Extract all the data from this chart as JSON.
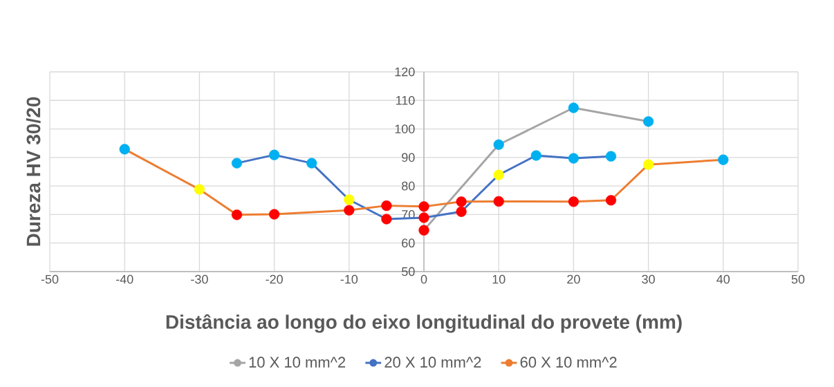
{
  "chart_data": {
    "type": "line",
    "xlabel": "Distância ao longo do eixo longitudinal do provete (mm)",
    "ylabel": "Dureza HV 30/20",
    "xlim": [
      -50,
      50
    ],
    "xticks": [
      -50,
      -40,
      -30,
      -20,
      -10,
      0,
      10,
      20,
      30,
      40,
      50
    ],
    "ylim": [
      50,
      120
    ],
    "yticks": [
      50,
      60,
      70,
      80,
      90,
      100,
      110,
      120
    ],
    "grid": true,
    "legend": "bottom",
    "marker": "circle",
    "line_style": "solid",
    "series": [
      {
        "name": "10 X 10 mm^2",
        "color": "#a5a5a5",
        "x": [
          0,
          5,
          10,
          20,
          30
        ],
        "values": [
          64.5,
          null,
          94.5,
          107.4,
          102.6
        ],
        "colors": [
          "#ff0000",
          "#ffff00",
          "#00b0f0",
          "#00b0f0",
          "#00b0f0"
        ]
      },
      {
        "name": "20 X 10 mm^2",
        "color": "#4472c4",
        "x": [
          -25,
          -20,
          -15,
          -10,
          -5,
          0,
          5,
          10,
          15,
          20,
          25
        ],
        "values": [
          88.0,
          90.9,
          88.0,
          75.2,
          68.4,
          68.9,
          71.0,
          83.9,
          90.7,
          89.7,
          90.4
        ],
        "colors": [
          "#00b0f0",
          "#00b0f0",
          "#00b0f0",
          "#ffff00",
          "#ff0000",
          "#ff0000",
          "#ff0000",
          "#ffff00",
          "#00b0f0",
          "#00b0f0",
          "#00b0f0"
        ]
      },
      {
        "name": "60 X 10 mm^2",
        "color": "#ed7d31",
        "x": [
          -40,
          -30,
          -25,
          -20,
          -10,
          -5,
          0,
          5,
          10,
          20,
          25,
          30,
          40
        ],
        "values": [
          92.9,
          78.8,
          69.9,
          70.1,
          71.5,
          73.1,
          72.8,
          74.5,
          74.6,
          74.5,
          75.0,
          87.5,
          89.2
        ],
        "colors": [
          "#00b0f0",
          "#ffff00",
          "#ff0000",
          "#ff0000",
          "#ff0000",
          "#ff0000",
          "#ff0000",
          "#ff0000",
          "#ff0000",
          "#ff0000",
          "#ff0000",
          "#ffff00",
          "#00b0f0"
        ]
      }
    ]
  }
}
